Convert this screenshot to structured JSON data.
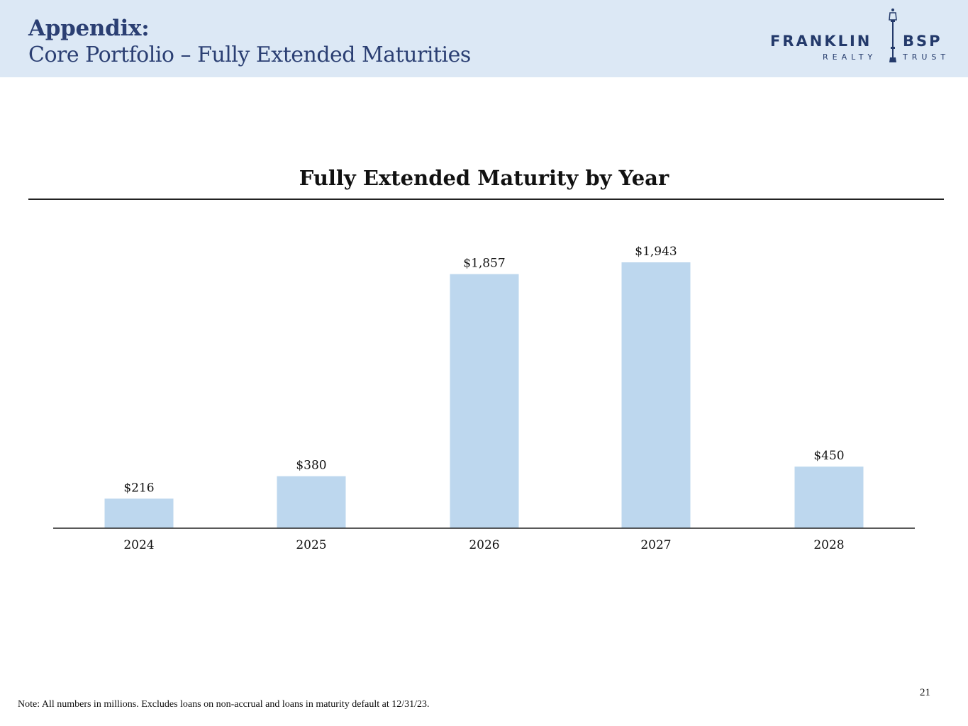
{
  "header": {
    "title": "Appendix:",
    "subtitle": "Core Portfolio – Fully Extended Maturities",
    "band_color": "#dce8f5",
    "title_color": "#2b3f73"
  },
  "logo": {
    "word1": "FRANKLIN",
    "word2": "BSP",
    "line2a": "REALTY",
    "line2b": "TRUST",
    "icon": "lamp-post-icon"
  },
  "chart_data": {
    "type": "bar",
    "title": "Fully Extended Maturity by Year",
    "categories": [
      "2024",
      "2025",
      "2026",
      "2027",
      "2028"
    ],
    "values": [
      216,
      380,
      1857,
      1943,
      450
    ],
    "data_labels": [
      "$216",
      "$380",
      "$1,857",
      "$1,943",
      "$450"
    ],
    "xlabel": "",
    "ylabel": "",
    "ylim": [
      0,
      1943
    ],
    "grid": false,
    "legend": "none",
    "bar_color": "#bdd7ee"
  },
  "footer": {
    "note": "Note: All numbers in millions. Excludes loans on non-accrual and loans in maturity default at 12/31/23.",
    "page_number": "21"
  }
}
